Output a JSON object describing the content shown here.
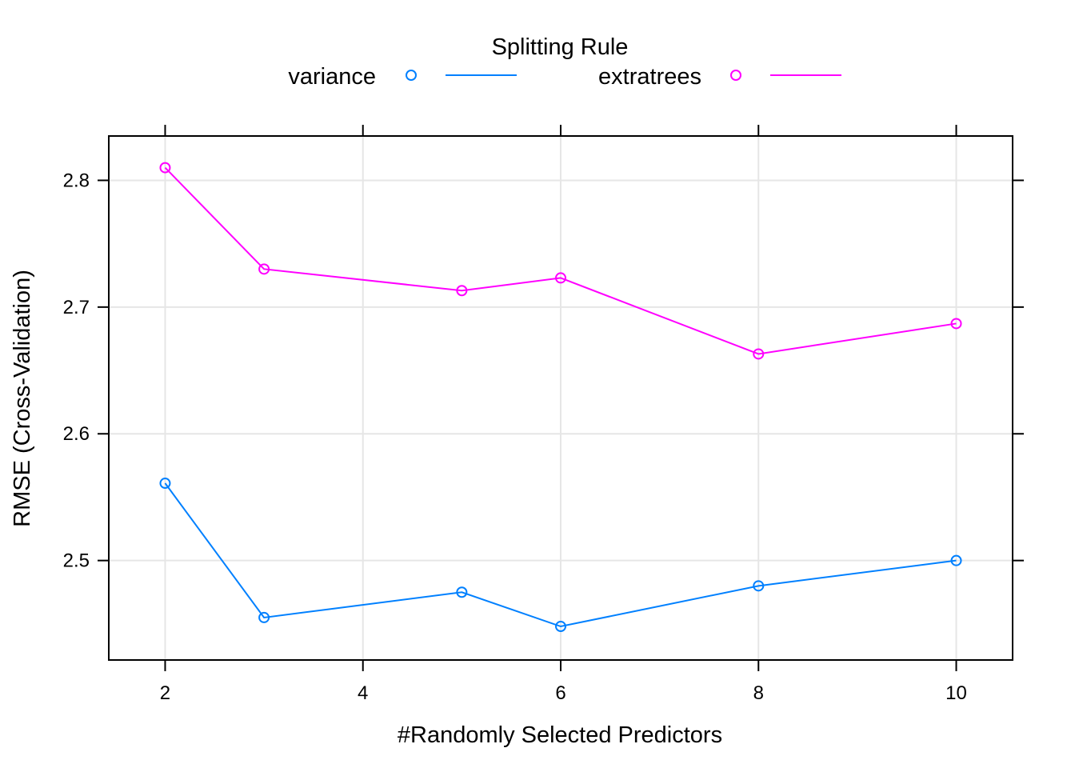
{
  "chart_data": {
    "type": "line",
    "title": "",
    "xlabel": "#Randomly Selected Predictors",
    "ylabel": "RMSE (Cross-Validation)",
    "xlim": [
      1.43,
      10.57
    ],
    "ylim": [
      2.4215,
      2.835
    ],
    "x_ticks": [
      2,
      4,
      6,
      8,
      10
    ],
    "y_ticks": [
      2.5,
      2.6,
      2.7,
      2.8
    ],
    "x_tick_labels": [
      "2",
      "4",
      "6",
      "8",
      "10"
    ],
    "y_tick_labels": [
      "2.5",
      "2.6",
      "2.7",
      "2.8"
    ],
    "grid": true,
    "legend": {
      "title": "Splitting Rule",
      "placement": "top"
    },
    "x": [
      2,
      3,
      5,
      6,
      8,
      10
    ],
    "series": [
      {
        "name": "variance",
        "color": "#0080ff",
        "marker": "circle",
        "values": [
          2.561,
          2.455,
          2.475,
          2.448,
          2.48,
          2.5
        ]
      },
      {
        "name": "extratrees",
        "color": "#ff00ff",
        "marker": "circle",
        "values": [
          2.81,
          2.73,
          2.713,
          2.723,
          2.663,
          2.687
        ]
      }
    ]
  }
}
